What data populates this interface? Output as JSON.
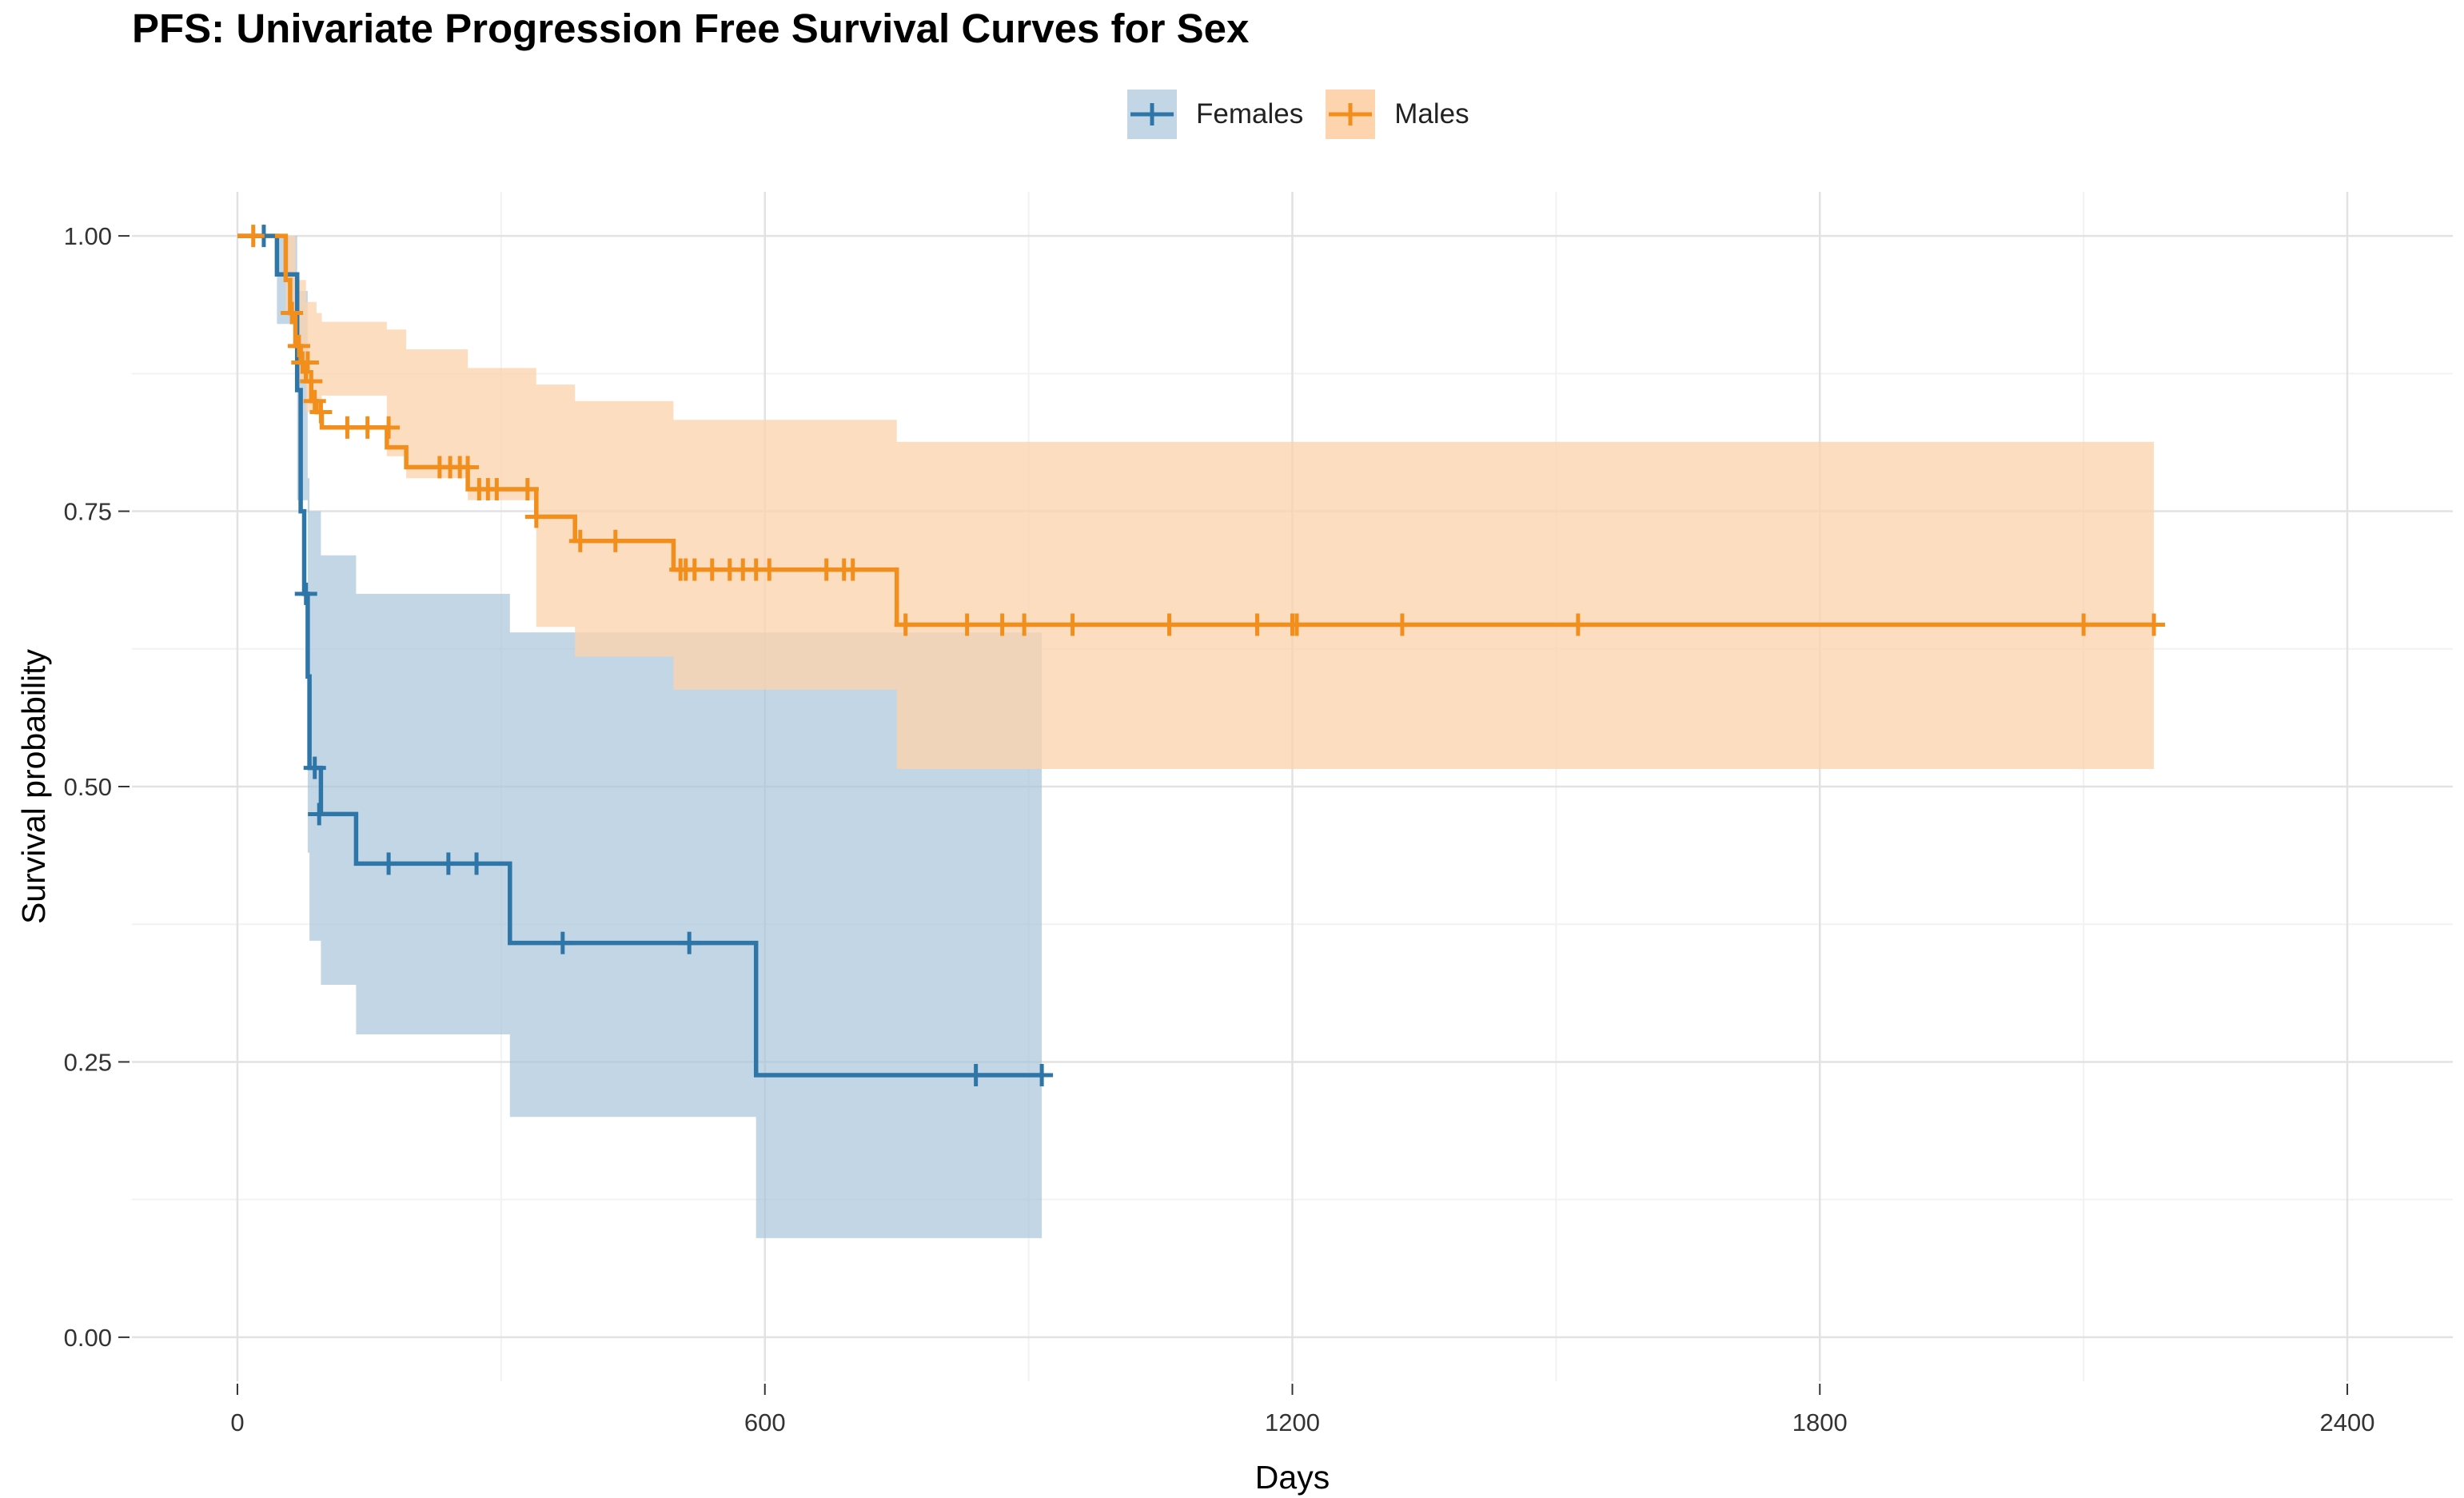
{
  "chart_data": {
    "type": "line",
    "subtype": "kaplan-meier step curve with confidence bands and censor marks",
    "title": "PFS: Univariate Progression Free Survival Curves for Sex",
    "xlabel": "Days",
    "ylabel": "Survival probability",
    "xlim": [
      -120,
      2520
    ],
    "ylim": [
      -0.04,
      1.04
    ],
    "x_ticks": [
      0,
      600,
      1200,
      1800,
      2400
    ],
    "x_tick_labels": [
      "0",
      "600",
      "1200",
      "1800",
      "2400"
    ],
    "y_ticks": [
      0,
      0.25,
      0.5,
      0.75,
      1.0
    ],
    "y_tick_labels": [
      "0.00",
      "0.25",
      "0.50",
      "0.75",
      "1.00"
    ],
    "grid": true,
    "legend_position": "top",
    "series": [
      {
        "name": "Females",
        "color": "#2e75a8",
        "band_color": "#a7c3d9",
        "steps": [
          [
            0,
            1.0
          ],
          [
            45,
            0.965
          ],
          [
            68,
            0.86
          ],
          [
            72,
            0.75
          ],
          [
            76,
            0.675
          ],
          [
            80,
            0.6
          ],
          [
            82,
            0.517
          ],
          [
            95,
            0.475
          ],
          [
            135,
            0.43
          ],
          [
            310,
            0.358
          ],
          [
            590,
            0.238
          ],
          [
            915,
            0.238
          ]
        ],
        "ci_steps": [
          [
            0,
            1.0,
            1.0
          ],
          [
            45,
            0.92,
            1.0
          ],
          [
            68,
            0.76,
            0.95
          ],
          [
            80,
            0.44,
            0.78
          ],
          [
            82,
            0.36,
            0.75
          ],
          [
            95,
            0.32,
            0.71
          ],
          [
            135,
            0.275,
            0.675
          ],
          [
            310,
            0.2,
            0.64
          ],
          [
            590,
            0.09,
            0.64
          ],
          [
            915,
            0.09,
            0.64
          ]
        ],
        "censor_x": [
          30,
          78,
          88,
          93,
          172,
          240,
          272,
          370,
          514,
          840,
          915
        ],
        "censor_y": [
          1.0,
          0.675,
          0.517,
          0.475,
          0.43,
          0.43,
          0.43,
          0.358,
          0.358,
          0.238,
          0.238
        ]
      },
      {
        "name": "Males",
        "color": "#f28e1c",
        "band_color": "#fdd4ae",
        "steps": [
          [
            0,
            1.0
          ],
          [
            55,
            0.96
          ],
          [
            60,
            0.93
          ],
          [
            66,
            0.9
          ],
          [
            72,
            0.885
          ],
          [
            78,
            0.868
          ],
          [
            84,
            0.85
          ],
          [
            90,
            0.84
          ],
          [
            96,
            0.826
          ],
          [
            170,
            0.808
          ],
          [
            192,
            0.79
          ],
          [
            262,
            0.77
          ],
          [
            340,
            0.745
          ],
          [
            384,
            0.723
          ],
          [
            496,
            0.697
          ],
          [
            750,
            0.647
          ],
          [
            2180,
            0.647
          ]
        ],
        "ci_steps": [
          [
            0,
            1.0,
            1.0
          ],
          [
            55,
            0.93,
            1.0
          ],
          [
            66,
            0.87,
            0.96
          ],
          [
            78,
            0.84,
            0.94
          ],
          [
            90,
            0.84,
            0.93
          ],
          [
            96,
            0.855,
            0.922
          ],
          [
            170,
            0.8,
            0.915
          ],
          [
            192,
            0.78,
            0.897
          ],
          [
            262,
            0.76,
            0.88
          ],
          [
            340,
            0.645,
            0.865
          ],
          [
            384,
            0.618,
            0.85
          ],
          [
            496,
            0.588,
            0.833
          ],
          [
            750,
            0.516,
            0.813
          ],
          [
            2180,
            0.516,
            0.813
          ]
        ],
        "censor_x": [
          18,
          62,
          70,
          74,
          80,
          84,
          88,
          95,
          125,
          148,
          172,
          230,
          242,
          253,
          262,
          275,
          285,
          295,
          330,
          340,
          390,
          430,
          504,
          510,
          520,
          540,
          560,
          575,
          590,
          605,
          670,
          690,
          700,
          760,
          830,
          870,
          895,
          950,
          1060,
          1160,
          1200,
          1205,
          1325,
          1525,
          2100,
          2180
        ],
        "censor_y": [
          1.0,
          0.93,
          0.9,
          0.885,
          0.885,
          0.868,
          0.85,
          0.84,
          0.826,
          0.826,
          0.826,
          0.79,
          0.79,
          0.79,
          0.79,
          0.77,
          0.77,
          0.77,
          0.77,
          0.745,
          0.723,
          0.723,
          0.697,
          0.697,
          0.697,
          0.697,
          0.697,
          0.697,
          0.697,
          0.697,
          0.697,
          0.697,
          0.697,
          0.647,
          0.647,
          0.647,
          0.647,
          0.647,
          0.647,
          0.647,
          0.647,
          0.647,
          0.647,
          0.647,
          0.647,
          0.647
        ]
      }
    ]
  }
}
